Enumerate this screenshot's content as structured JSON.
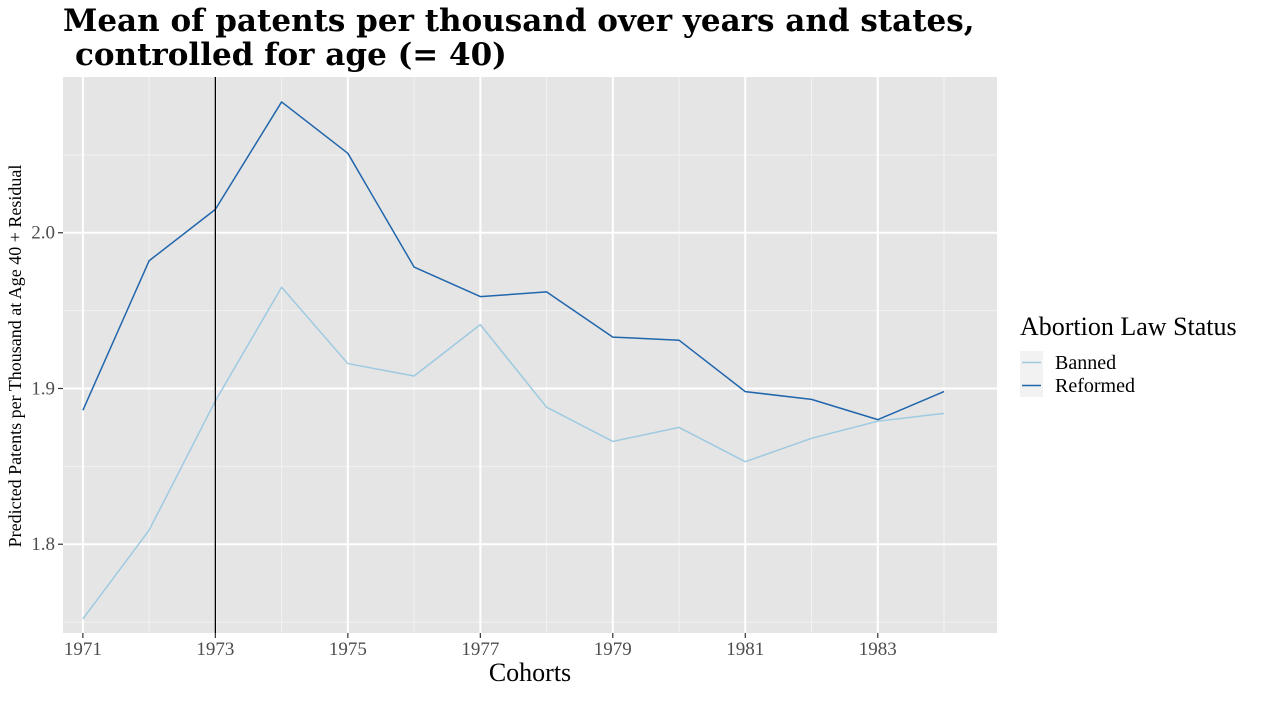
{
  "chart_data": {
    "type": "line",
    "title": [
      "Mean of patents per thousand over years and states,",
      "controlled for age (= 40)"
    ],
    "xlabel": "Cohorts",
    "ylabel": "Predicted Patents per Thousand at Age 40 + Residual",
    "x": [
      1971,
      1972,
      1973,
      1974,
      1975,
      1976,
      1977,
      1978,
      1979,
      1980,
      1981,
      1982,
      1983,
      1984
    ],
    "xlim": [
      1970.7,
      1984.8
    ],
    "ylim": [
      1.743,
      2.1
    ],
    "x_ticks": [
      "1971",
      "1973",
      "1975",
      "1977",
      "1979",
      "1981",
      "1983"
    ],
    "x_tick_values": [
      1971,
      1973,
      1975,
      1977,
      1979,
      1981,
      1983
    ],
    "y_ticks": [
      "1.8",
      "1.9",
      "2.0"
    ],
    "y_tick_values": [
      1.8,
      1.9,
      2.0
    ],
    "y_minor_values": [
      1.75,
      1.85,
      1.95,
      2.05
    ],
    "vline": 1973,
    "grid": true,
    "legend": {
      "title": "Abortion Law Status",
      "position": "right"
    },
    "series": [
      {
        "name": "Banned",
        "color": "#9ecae1",
        "values": [
          1.752,
          1.809,
          1.892,
          1.965,
          1.916,
          1.908,
          1.941,
          1.888,
          1.866,
          1.875,
          1.853,
          1.868,
          1.879,
          1.884
        ]
      },
      {
        "name": "Reformed",
        "color": "#2166ac",
        "values": [
          1.886,
          1.982,
          2.015,
          2.084,
          2.051,
          1.978,
          1.959,
          1.962,
          1.933,
          1.931,
          1.898,
          1.893,
          1.88,
          1.898
        ]
      }
    ]
  }
}
